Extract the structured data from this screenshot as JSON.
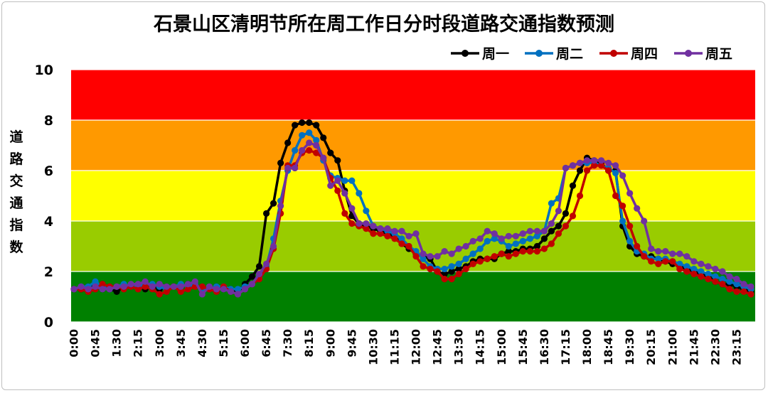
{
  "chart_data": {
    "type": "line",
    "title": "石景山区清明节所在周工作日分时段道路交通指数预测",
    "xlabel": "",
    "ylabel": "道路交通指数",
    "ylim": [
      0,
      10
    ],
    "yticks": [
      "0",
      "2",
      "4",
      "6",
      "8",
      "10"
    ],
    "legend_position": "top-right",
    "x_tick_labels": [
      "0:00",
      "0:45",
      "1:30",
      "2:15",
      "3:00",
      "3:45",
      "4:30",
      "5:15",
      "6:00",
      "6:45",
      "7:30",
      "8:15",
      "9:00",
      "9:45",
      "10:30",
      "11:15",
      "12:00",
      "12:45",
      "13:30",
      "14:15",
      "15:00",
      "15:45",
      "16:30",
      "17:15",
      "18:00",
      "18:45",
      "19:30",
      "20:15",
      "21:00",
      "21:45",
      "22:30",
      "23:15"
    ],
    "x": [
      "0:00",
      "0:15",
      "0:30",
      "0:45",
      "1:00",
      "1:15",
      "1:30",
      "1:45",
      "2:00",
      "2:15",
      "2:30",
      "2:45",
      "3:00",
      "3:15",
      "3:30",
      "3:45",
      "4:00",
      "4:15",
      "4:30",
      "4:45",
      "5:00",
      "5:15",
      "5:30",
      "5:45",
      "6:00",
      "6:15",
      "6:30",
      "6:45",
      "7:00",
      "7:15",
      "7:30",
      "7:45",
      "8:00",
      "8:15",
      "8:30",
      "8:45",
      "9:00",
      "9:15",
      "9:30",
      "9:45",
      "10:00",
      "10:15",
      "10:30",
      "10:45",
      "11:00",
      "11:15",
      "11:30",
      "11:45",
      "12:00",
      "12:15",
      "12:30",
      "12:45",
      "13:00",
      "13:15",
      "13:30",
      "13:45",
      "14:00",
      "14:15",
      "14:30",
      "14:45",
      "15:00",
      "15:15",
      "15:30",
      "15:45",
      "16:00",
      "16:15",
      "16:30",
      "16:45",
      "17:00",
      "17:15",
      "17:30",
      "17:45",
      "18:00",
      "18:15",
      "18:30",
      "18:45",
      "19:00",
      "19:15",
      "19:30",
      "19:45",
      "20:00",
      "20:15",
      "20:30",
      "20:45",
      "21:00",
      "21:15",
      "21:30",
      "21:45",
      "22:00",
      "22:15",
      "22:30",
      "22:45",
      "23:00",
      "23:15",
      "23:30",
      "23:45"
    ],
    "bands": [
      {
        "from": 0,
        "to": 2,
        "color": "#008000"
      },
      {
        "from": 2,
        "to": 4,
        "color": "#99cc00"
      },
      {
        "from": 4,
        "to": 6,
        "color": "#ffff00"
      },
      {
        "from": 6,
        "to": 8,
        "color": "#ff9900"
      },
      {
        "from": 8,
        "to": 10,
        "color": "#ff0000"
      }
    ],
    "series": [
      {
        "name": "周一",
        "color": "#000000",
        "values": [
          1.3,
          1.3,
          1.4,
          1.4,
          1.3,
          1.3,
          1.2,
          1.4,
          1.4,
          1.4,
          1.3,
          1.4,
          1.3,
          1.4,
          1.4,
          1.4,
          1.5,
          1.5,
          1.3,
          1.3,
          1.4,
          1.3,
          1.3,
          1.2,
          1.5,
          1.8,
          2.2,
          4.3,
          4.7,
          6.3,
          7.1,
          7.8,
          7.9,
          7.9,
          7.8,
          7.3,
          6.7,
          6.4,
          5.2,
          4.2,
          3.9,
          3.8,
          3.7,
          3.6,
          3.5,
          3.4,
          3.1,
          2.9,
          2.7,
          2.6,
          2.5,
          2.0,
          1.9,
          2.0,
          2.1,
          2.2,
          2.4,
          2.5,
          2.5,
          2.5,
          2.7,
          2.8,
          2.8,
          2.9,
          2.9,
          3.0,
          3.3,
          3.6,
          3.8,
          4.3,
          5.4,
          6.0,
          6.5,
          6.4,
          6.3,
          6.0,
          6.0,
          3.8,
          3.0,
          2.7,
          2.6,
          2.6,
          2.5,
          2.4,
          2.3,
          2.2,
          2.1,
          2.0,
          1.9,
          1.8,
          1.6,
          1.5,
          1.5,
          1.4,
          1.3,
          1.2
        ]
      },
      {
        "name": "周二",
        "color": "#0070c0",
        "values": [
          1.3,
          1.4,
          1.4,
          1.6,
          1.4,
          1.3,
          1.4,
          1.5,
          1.4,
          1.4,
          1.5,
          1.5,
          1.4,
          1.3,
          1.4,
          1.5,
          1.4,
          1.5,
          1.3,
          1.3,
          1.4,
          1.4,
          1.3,
          1.3,
          1.4,
          1.5,
          1.8,
          2.2,
          3.3,
          4.8,
          6.0,
          6.8,
          7.4,
          7.5,
          7.2,
          6.4,
          5.8,
          5.7,
          5.6,
          5.6,
          5.1,
          4.4,
          3.8,
          3.7,
          3.6,
          3.5,
          3.3,
          3.0,
          2.8,
          2.5,
          2.2,
          2.1,
          2.1,
          2.2,
          2.3,
          2.5,
          2.7,
          2.9,
          3.2,
          3.3,
          3.2,
          3.0,
          3.1,
          3.2,
          3.3,
          3.4,
          3.6,
          4.7,
          4.9,
          6.1,
          6.2,
          6.3,
          6.3,
          6.3,
          6.2,
          6.1,
          5.9,
          4.0,
          3.2,
          2.8,
          2.7,
          2.5,
          2.5,
          2.5,
          2.4,
          2.3,
          2.2,
          2.1,
          2.0,
          1.9,
          1.8,
          1.7,
          1.6,
          1.5,
          1.4,
          1.3
        ]
      },
      {
        "name": "周四",
        "color": "#c00000",
        "values": [
          1.3,
          1.3,
          1.2,
          1.3,
          1.5,
          1.4,
          1.4,
          1.3,
          1.4,
          1.3,
          1.4,
          1.3,
          1.1,
          1.2,
          1.4,
          1.2,
          1.3,
          1.4,
          1.4,
          1.3,
          1.2,
          1.4,
          1.2,
          1.1,
          1.3,
          1.5,
          1.7,
          2.1,
          2.9,
          4.3,
          6.2,
          6.2,
          6.7,
          6.8,
          6.7,
          6.5,
          5.7,
          5.2,
          4.3,
          3.9,
          3.8,
          3.7,
          3.5,
          3.5,
          3.4,
          3.3,
          3.1,
          3.0,
          2.6,
          2.2,
          2.1,
          2.0,
          1.7,
          1.7,
          1.9,
          2.1,
          2.3,
          2.4,
          2.5,
          2.6,
          2.7,
          2.6,
          2.7,
          2.8,
          2.8,
          2.8,
          2.9,
          3.1,
          3.5,
          3.8,
          4.2,
          5.0,
          6.0,
          6.2,
          6.2,
          6.0,
          5.0,
          4.6,
          3.8,
          3.0,
          2.6,
          2.4,
          2.3,
          2.4,
          2.4,
          2.1,
          2.0,
          1.9,
          1.8,
          1.7,
          1.6,
          1.5,
          1.3,
          1.2,
          1.2,
          1.1
        ]
      },
      {
        "name": "周五",
        "color": "#7030a0",
        "values": [
          1.3,
          1.4,
          1.3,
          1.4,
          1.3,
          1.3,
          1.4,
          1.4,
          1.5,
          1.5,
          1.6,
          1.4,
          1.5,
          1.4,
          1.4,
          1.4,
          1.5,
          1.6,
          1.1,
          1.4,
          1.3,
          1.3,
          1.2,
          1.1,
          1.3,
          1.5,
          1.9,
          2.3,
          3.0,
          4.6,
          6.1,
          6.1,
          6.8,
          7.1,
          7.0,
          6.5,
          5.4,
          5.6,
          5.1,
          4.5,
          3.9,
          3.9,
          3.8,
          3.7,
          3.7,
          3.6,
          3.6,
          3.4,
          3.5,
          2.7,
          2.6,
          2.6,
          2.8,
          2.7,
          2.9,
          3.0,
          3.2,
          3.3,
          3.6,
          3.5,
          3.3,
          3.4,
          3.4,
          3.5,
          3.6,
          3.6,
          3.6,
          3.9,
          4.4,
          6.1,
          6.2,
          6.3,
          6.4,
          6.4,
          6.4,
          6.3,
          6.2,
          5.8,
          5.1,
          4.5,
          4.0,
          2.9,
          2.8,
          2.8,
          2.7,
          2.7,
          2.6,
          2.4,
          2.3,
          2.2,
          2.1,
          2.0,
          1.8,
          1.7,
          1.5,
          1.4
        ]
      }
    ]
  }
}
